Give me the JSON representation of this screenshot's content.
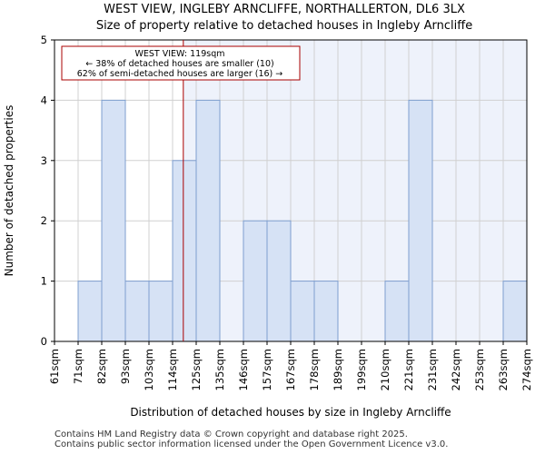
{
  "chart_data": {
    "type": "histogram",
    "title_lines": [
      "WEST VIEW, INGLEBY ARNCLIFFE, NORTHALLERTON, DL6 3LX",
      "Size of property relative to detached houses in Ingleby Arncliffe"
    ],
    "xlabel": "Distribution of detached houses by size in Ingleby Arncliffe",
    "ylabel": "Number of detached properties",
    "categories": [
      "61sqm",
      "71sqm",
      "82sqm",
      "93sqm",
      "103sqm",
      "114sqm",
      "125sqm",
      "135sqm",
      "146sqm",
      "157sqm",
      "167sqm",
      "178sqm",
      "189sqm",
      "199sqm",
      "210sqm",
      "221sqm",
      "231sqm",
      "242sqm",
      "253sqm",
      "263sqm",
      "274sqm"
    ],
    "values": [
      0,
      1,
      4,
      1,
      1,
      3,
      4,
      0,
      2,
      2,
      1,
      1,
      0,
      0,
      1,
      4,
      0,
      0,
      0,
      1
    ],
    "ylim": [
      0,
      5
    ],
    "yticks": [
      0,
      1,
      2,
      3,
      4,
      5
    ],
    "grid": true,
    "marker": {
      "value_sqm": 119,
      "label": "WEST VIEW: 119sqm",
      "line2": "← 38% of detached houses are smaller (10)",
      "line3": "62% of semi-detached houses are larger (16) →",
      "color": "#aa0000"
    },
    "bar_fill": "#d6e2f5",
    "bar_edge": "#7f9fcf",
    "highlight_bg": "#eef2fb"
  },
  "footer": {
    "line1": "Contains HM Land Registry data © Crown copyright and database right 2025.",
    "line2": "Contains public sector information licensed under the Open Government Licence v3.0."
  }
}
